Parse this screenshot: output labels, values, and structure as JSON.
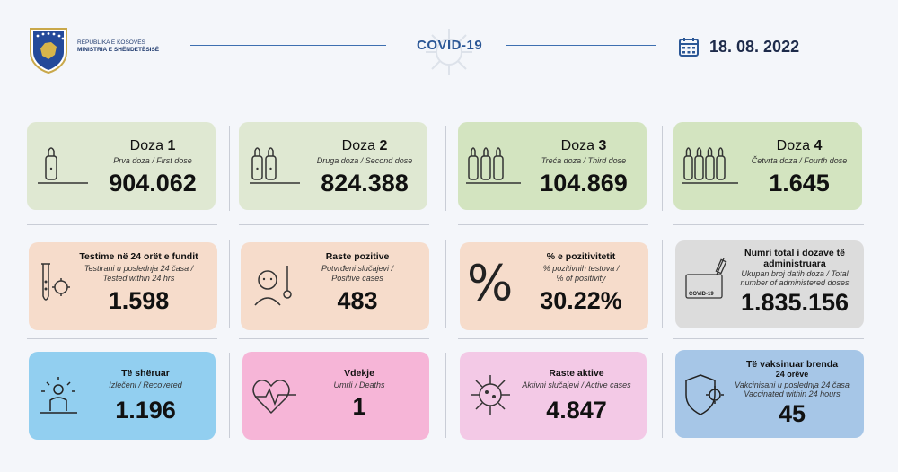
{
  "header": {
    "ministry_line1": "REPUBLIKA E KOSOVËS",
    "ministry_line2": "MINISTRIA E SHËNDETËSISË",
    "title": "COVID-19",
    "date": "18. 08. 2022"
  },
  "doses": [
    {
      "label": "Doza",
      "num": "1",
      "sub": "Prva doza / First dose",
      "value": "904.062"
    },
    {
      "label": "Doza",
      "num": "2",
      "sub": "Druga doza / Second dose",
      "value": "824.388"
    },
    {
      "label": "Doza",
      "num": "3",
      "sub": "Treća doza / Third dose",
      "value": "104.869"
    },
    {
      "label": "Doza",
      "num": "4",
      "sub": "Četvrta doza / Fourth dose",
      "value": "1.645"
    }
  ],
  "row2": [
    {
      "title": "Testime në 24 orët e fundit",
      "sub1": "Testirani u poslednja 24 časa /",
      "sub2": "Tested within 24 hrs",
      "value": "1.598"
    },
    {
      "title": "Raste pozitive",
      "sub1": "Potvrđeni slučajevi /",
      "sub2": "Positive cases",
      "value": "483"
    },
    {
      "title": "% e pozitivitetit",
      "sub1": "% pozitivnih testova /",
      "sub2": "% of positivity",
      "value": "30.22%"
    },
    {
      "title": "Numri total i dozave të",
      "title2": "administruara",
      "sub1": "Ukupan broj datih doza / Total",
      "sub2": "number of administered doses",
      "value": "1.835.156"
    }
  ],
  "row3": [
    {
      "title": "Të shëruar",
      "sub1": "Izlečeni / Recovered",
      "value": "1.196"
    },
    {
      "title": "Vdekje",
      "sub1": "Umrli / Deaths",
      "value": "1"
    },
    {
      "title": "Raste aktive",
      "sub1": "Aktivni slučajevi / Active cases",
      "value": "4.847"
    },
    {
      "title": "Të vaksinuar brenda",
      "title2": "24 orëve",
      "sub1": "Vakcinisani u poslednja 24 časa",
      "sub2": "Vaccinated within 24 hours",
      "value": "45"
    }
  ],
  "icons": {
    "covid_card_label": "COVID-19",
    "percent_symbol": "%"
  }
}
